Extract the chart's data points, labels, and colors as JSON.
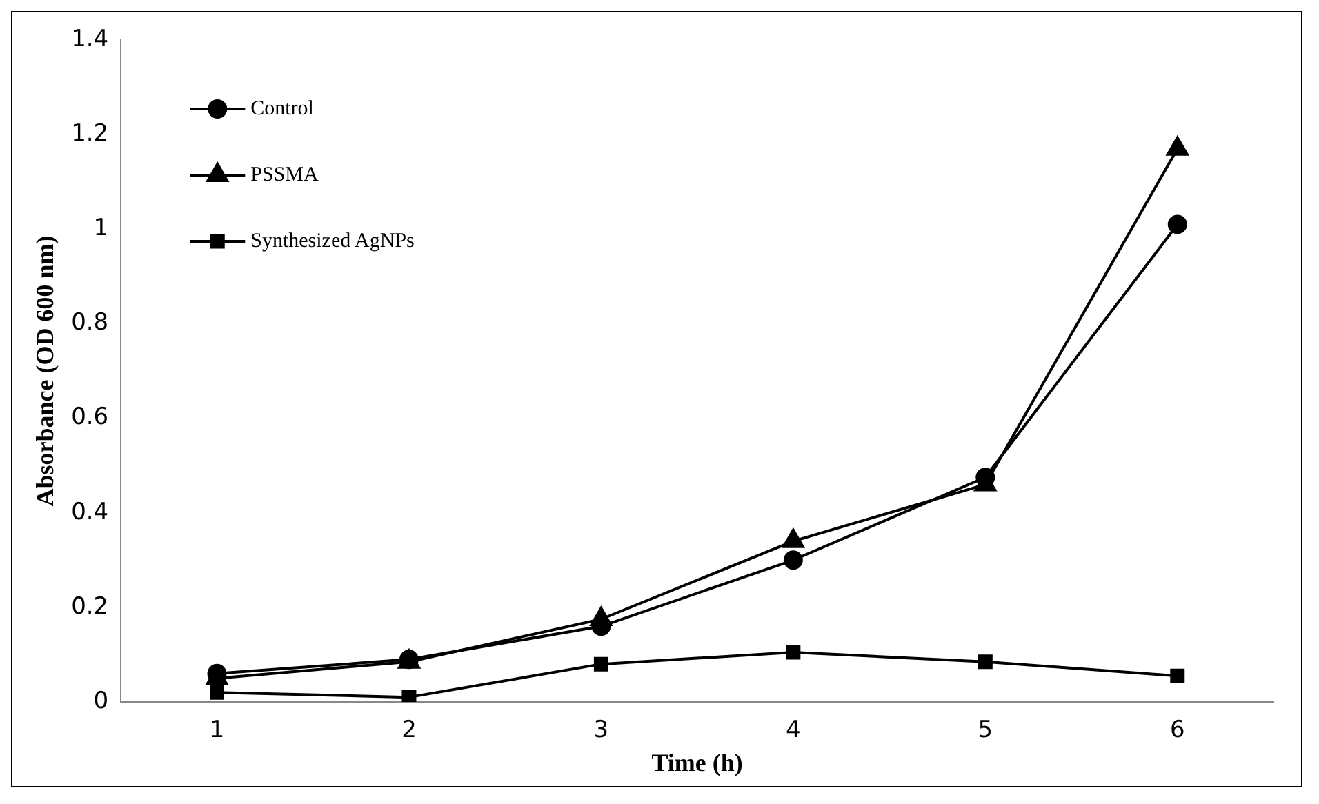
{
  "chart_data": {
    "type": "line",
    "xlabel": "Time (h)",
    "ylabel": "Absorbance (OD 600 nm)",
    "categories": [
      "1",
      "2",
      "3",
      "4",
      "5",
      "6"
    ],
    "series": [
      {
        "name": "Control",
        "color": "#000000",
        "marker": "circle",
        "values": [
          0.06,
          0.09,
          0.16,
          0.3,
          0.475,
          1.01
        ]
      },
      {
        "name": "PSSMA",
        "color": "#000000",
        "marker": "triangle",
        "values": [
          0.05,
          0.085,
          0.175,
          0.34,
          0.46,
          1.17
        ]
      },
      {
        "name": "Synthesized AgNPs",
        "color": "#000000",
        "marker": "square",
        "values": [
          0.02,
          0.01,
          0.08,
          0.105,
          0.085,
          0.055
        ]
      }
    ],
    "ylim": [
      0,
      1.4
    ],
    "yticks": [
      0,
      0.2,
      0.4,
      0.6,
      0.8,
      1,
      1.2,
      1.4
    ],
    "grid": false,
    "legend": "top left",
    "line_style": "solid"
  }
}
